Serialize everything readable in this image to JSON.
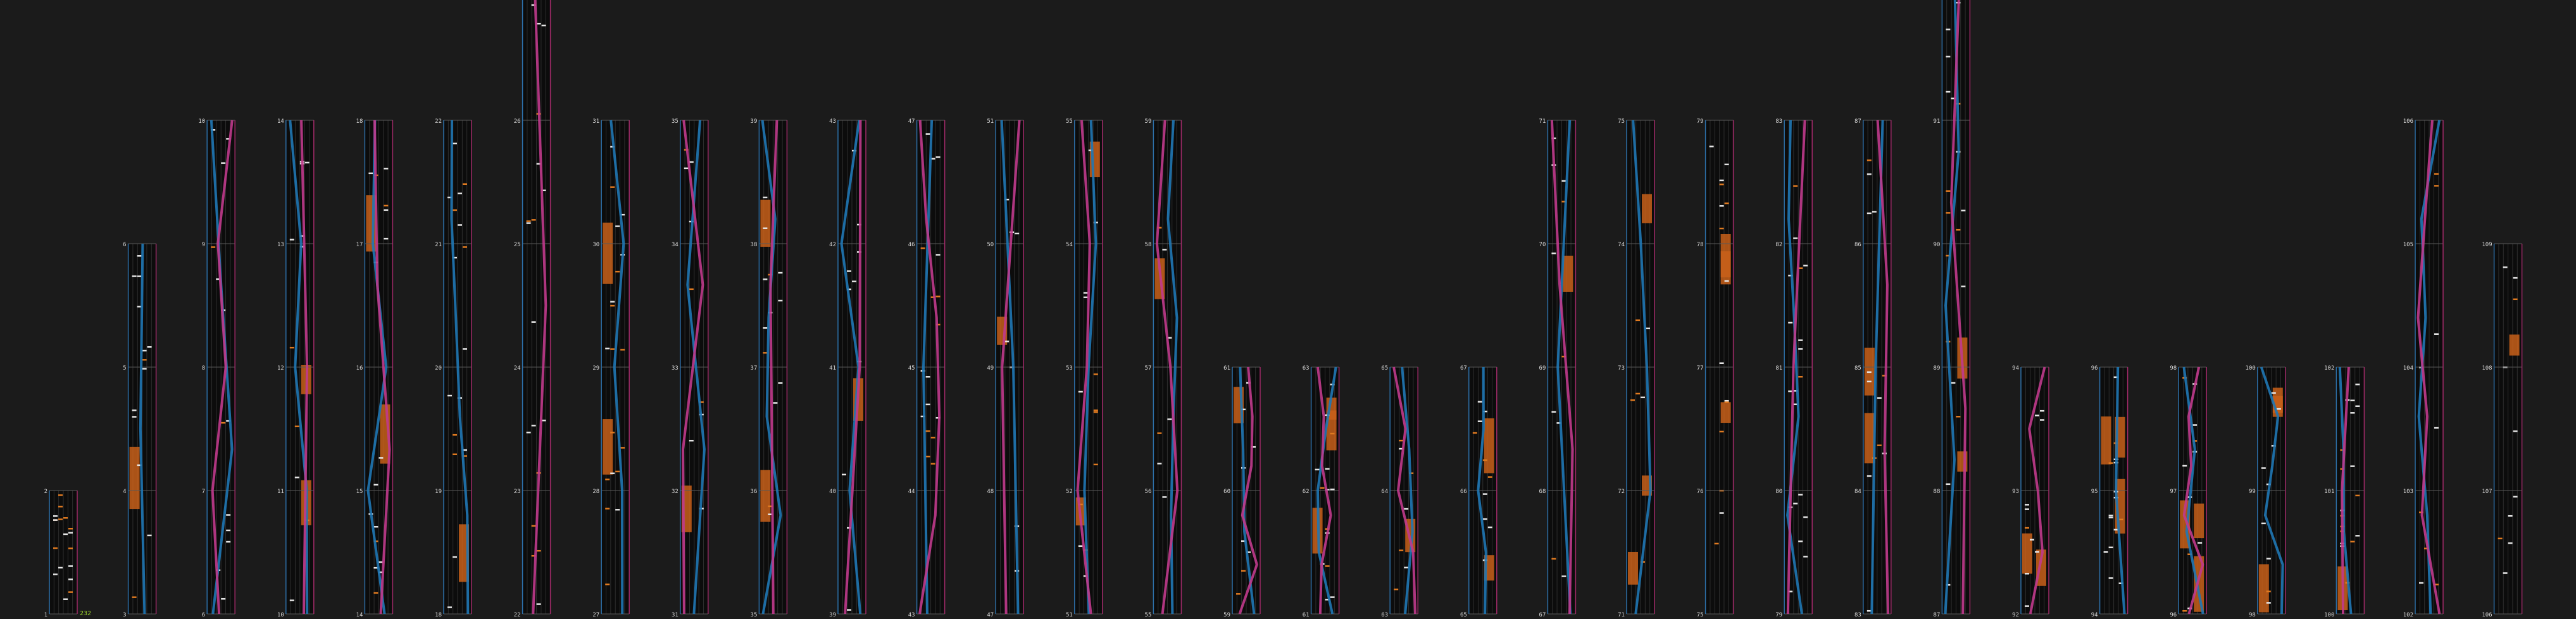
{
  "colors": {
    "background": "#1b1b1b",
    "column_fill": "#0c0c0c",
    "lane_line": "#2e2e2e",
    "measure_line": "#5a5a5a",
    "left_border": "#2d6fa8",
    "right_border": "#a02a68",
    "left_laser": "#1f77b4",
    "right_laser": "#c03a8c",
    "fx_hold": "#c8601a",
    "chip": "#e6e6e6",
    "fx_chip": "#e07a20",
    "combo": "#9bd22a"
  },
  "chart_data": {
    "type": "other",
    "description_visible": "vertical lane columns of measures",
    "combo_counter": "232",
    "columns": [
      {
        "labels": [
          "1",
          "2"
        ]
      },
      {
        "labels": [
          "3",
          "4",
          "5",
          "6"
        ]
      },
      {
        "labels": [
          "6",
          "7",
          "8",
          "9",
          "10"
        ]
      },
      {
        "labels": [
          "10",
          "11",
          "12",
          "13",
          "14"
        ]
      },
      {
        "labels": [
          "14",
          "15",
          "16",
          "17",
          "18"
        ]
      },
      {
        "labels": [
          "18",
          "19",
          "20",
          "21",
          "22"
        ]
      },
      {
        "labels": [
          "22",
          "23",
          "24",
          "25",
          "26",
          "27"
        ]
      },
      {
        "labels": [
          "27",
          "28",
          "29",
          "30",
          "31"
        ]
      },
      {
        "labels": [
          "31",
          "32",
          "33",
          "34",
          "35"
        ]
      },
      {
        "labels": [
          "35",
          "36",
          "37",
          "38",
          "39"
        ]
      },
      {
        "labels": [
          "39",
          "40",
          "41",
          "42",
          "43"
        ]
      },
      {
        "labels": [
          "43",
          "44",
          "45",
          "46",
          "47"
        ]
      },
      {
        "labels": [
          "47",
          "48",
          "49",
          "50",
          "51"
        ]
      },
      {
        "labels": [
          "51",
          "52",
          "53",
          "54",
          "55"
        ]
      },
      {
        "labels": [
          "55",
          "56",
          "57",
          "58",
          "59"
        ]
      },
      {
        "labels": [
          "59",
          "60",
          "61"
        ]
      },
      {
        "labels": [
          "61",
          "62",
          "63"
        ]
      },
      {
        "labels": [
          "63",
          "64",
          "65"
        ]
      },
      {
        "labels": [
          "65",
          "66",
          "67"
        ]
      },
      {
        "labels": [
          "67",
          "68",
          "69",
          "70",
          "71"
        ]
      },
      {
        "labels": [
          "71",
          "72",
          "73",
          "74",
          "75"
        ]
      },
      {
        "labels": [
          "75",
          "76",
          "77",
          "78",
          "79"
        ]
      },
      {
        "labels": [
          "79",
          "80",
          "81",
          "82",
          "83"
        ]
      },
      {
        "labels": [
          "83",
          "84",
          "85",
          "86",
          "87"
        ]
      },
      {
        "labels": [
          "87",
          "88",
          "89",
          "90",
          "91",
          "92"
        ]
      },
      {
        "labels": [
          "92",
          "93",
          "94"
        ]
      },
      {
        "labels": [
          "94",
          "95",
          "96"
        ]
      },
      {
        "labels": [
          "96",
          "97",
          "98"
        ]
      },
      {
        "labels": [
          "98",
          "99",
          "100"
        ]
      },
      {
        "labels": [
          "100",
          "101",
          "102"
        ]
      },
      {
        "labels": [
          "102",
          "103",
          "104",
          "105",
          "106"
        ]
      },
      {
        "labels": [
          "106",
          "107",
          "108",
          "109"
        ]
      }
    ]
  }
}
